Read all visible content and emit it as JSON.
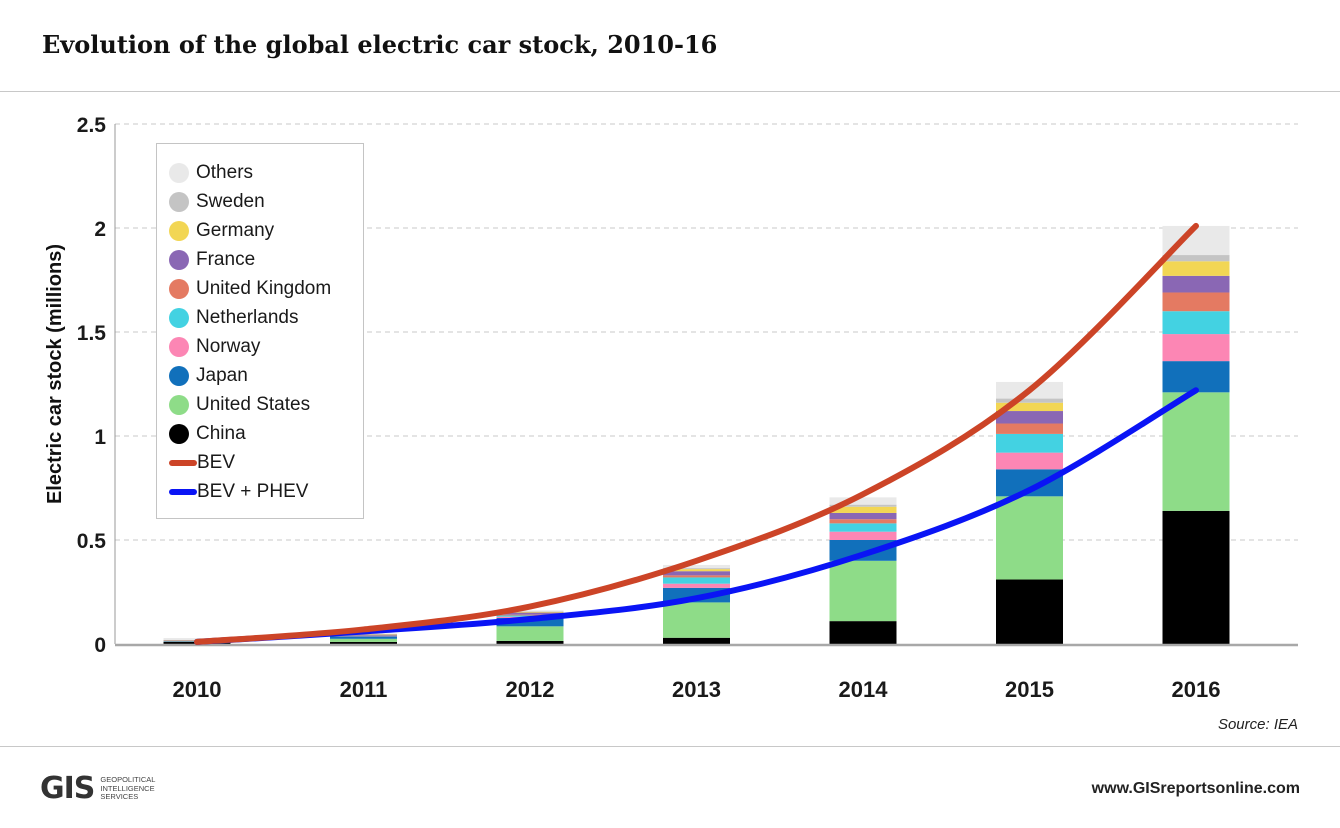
{
  "header": {
    "title": "Evolution of the global electric car stock, 2010-16"
  },
  "footer": {
    "source": "Source: IEA",
    "website": "www.GISreportsonline.com",
    "logo_mark": "GIS",
    "logo_lines": [
      "Geopolitical",
      "Intelligence",
      "Services"
    ]
  },
  "chart_data": {
    "type": "bar",
    "stacked": true,
    "categories": [
      "2010",
      "2011",
      "2012",
      "2013",
      "2014",
      "2015",
      "2016"
    ],
    "xlabel": "",
    "ylabel": "Electric car stock (millions)",
    "ylim": [
      0,
      2.5
    ],
    "yticks": [
      {
        "v": 0,
        "label": "0"
      },
      {
        "v": 0.5,
        "label": "0.5"
      },
      {
        "v": 1,
        "label": "1"
      },
      {
        "v": 1.5,
        "label": "1.5"
      },
      {
        "v": 2,
        "label": "2"
      },
      {
        "v": 2.5,
        "label": "2.5"
      }
    ],
    "grid": true,
    "legend_position": "top-left",
    "series": [
      {
        "name": "China",
        "color": "#000000",
        "values": [
          0.01,
          0.01,
          0.015,
          0.03,
          0.11,
          0.31,
          0.64
        ]
      },
      {
        "name": "United States",
        "color": "#8edc88",
        "values": [
          0.001,
          0.015,
          0.07,
          0.17,
          0.29,
          0.4,
          0.57
        ]
      },
      {
        "name": "Japan",
        "color": "#1170bb",
        "values": [
          0.002,
          0.012,
          0.04,
          0.07,
          0.1,
          0.13,
          0.15
        ]
      },
      {
        "name": "Norway",
        "color": "#fc86b4",
        "values": [
          0.001,
          0.002,
          0.006,
          0.02,
          0.04,
          0.08,
          0.13
        ]
      },
      {
        "name": "Netherlands",
        "color": "#43d2e2",
        "values": [
          0.001,
          0.001,
          0.006,
          0.03,
          0.04,
          0.09,
          0.11
        ]
      },
      {
        "name": "United Kingdom",
        "color": "#e47a62",
        "values": [
          0.001,
          0.002,
          0.004,
          0.01,
          0.02,
          0.05,
          0.09
        ]
      },
      {
        "name": "France",
        "color": "#8a67b4",
        "values": [
          0.001,
          0.003,
          0.01,
          0.02,
          0.03,
          0.06,
          0.08
        ]
      },
      {
        "name": "Germany",
        "color": "#f2d654",
        "values": [
          0.001,
          0.002,
          0.004,
          0.01,
          0.03,
          0.04,
          0.07
        ]
      },
      {
        "name": "Sweden",
        "color": "#c4c4c4",
        "values": [
          0.0005,
          0.001,
          0.002,
          0.005,
          0.01,
          0.02,
          0.03
        ]
      },
      {
        "name": "Others",
        "color": "#e9e9e9",
        "values": [
          0.01,
          0.003,
          0.005,
          0.015,
          0.035,
          0.08,
          0.14
        ]
      }
    ],
    "lines": [
      {
        "name": "BEV",
        "color": "#cc4427",
        "x": [
          "2010",
          "2011",
          "2012",
          "2013",
          "2014",
          "2015",
          "2016"
        ],
        "values": [
          0.01,
          0.07,
          0.18,
          0.4,
          0.72,
          1.22,
          2.01
        ]
      },
      {
        "name": "BEV + PHEV",
        "color": "#0a14f5",
        "x": [
          "2010",
          "2011",
          "2012",
          "2013",
          "2014",
          "2015",
          "2016"
        ],
        "values": [
          0.01,
          0.06,
          0.12,
          0.22,
          0.43,
          0.74,
          1.22
        ]
      }
    ],
    "legend": [
      {
        "label": "Others",
        "color": "#e9e9e9",
        "kind": "dot"
      },
      {
        "label": "Sweden",
        "color": "#c4c4c4",
        "kind": "dot"
      },
      {
        "label": "Germany",
        "color": "#f2d654",
        "kind": "dot"
      },
      {
        "label": "France",
        "color": "#8a67b4",
        "kind": "dot"
      },
      {
        "label": "United Kingdom",
        "color": "#e47a62",
        "kind": "dot"
      },
      {
        "label": "Netherlands",
        "color": "#43d2e2",
        "kind": "dot"
      },
      {
        "label": "Norway",
        "color": "#fc86b4",
        "kind": "dot"
      },
      {
        "label": "Japan",
        "color": "#1170bb",
        "kind": "dot"
      },
      {
        "label": "United States",
        "color": "#8edc88",
        "kind": "dot"
      },
      {
        "label": "China",
        "color": "#000000",
        "kind": "dot"
      },
      {
        "label": "BEV",
        "color": "#cc4427",
        "kind": "line"
      },
      {
        "label": "BEV + PHEV",
        "color": "#0a14f5",
        "kind": "line"
      }
    ]
  }
}
